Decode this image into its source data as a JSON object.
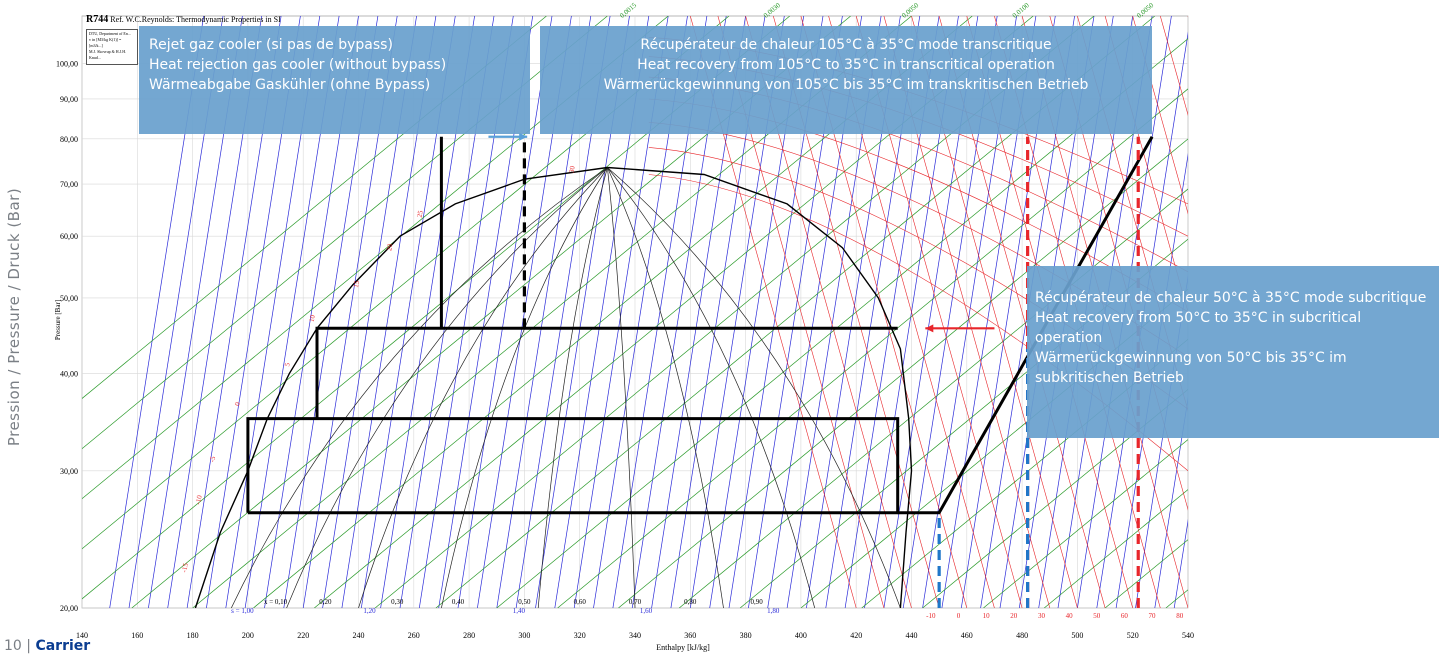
{
  "chart_data": {
    "type": "scatter",
    "title": "R744",
    "subtitle": "Ref. W.C.Reynolds: Thermodynamic Properties in SI",
    "legend_lines": [
      "DTU, Department of En...",
      "v in [M3/kg K(1)] = [m3/k...]",
      "M.J. Skovrup & H.J.H. Knud..."
    ],
    "xlabel": "Enthalpy [kJ/kg]",
    "ylabel": "Pressure [Bar]",
    "side_label": "Pression / Pressure / Druck (Bar)",
    "xlim": [
      140,
      540
    ],
    "ylim": [
      20,
      115
    ],
    "y_scale": "log",
    "x_ticks": [
      140,
      160,
      180,
      200,
      220,
      240,
      260,
      280,
      300,
      320,
      340,
      360,
      380,
      400,
      420,
      440,
      460,
      480,
      500,
      520,
      540
    ],
    "y_ticks": [
      {
        "v": 20,
        "label": "20,00"
      },
      {
        "v": 30,
        "label": "30,00"
      },
      {
        "v": 40,
        "label": "40,00"
      },
      {
        "v": 50,
        "label": "50,00"
      },
      {
        "v": 60,
        "label": "60,00"
      },
      {
        "v": 70,
        "label": "70,00"
      },
      {
        "v": 80,
        "label": "80,00"
      },
      {
        "v": 90,
        "label": "90,00"
      },
      {
        "v": 100,
        "label": "100,00"
      }
    ],
    "quality_labels": [
      "x = 0,10",
      "0,20",
      "0,30",
      "0,40",
      "0,50",
      "0,60",
      "0,70",
      "0,80",
      "0,90"
    ],
    "entropy_labels": [
      "s = 1,00",
      "1,20",
      "1,40",
      "1,60",
      "1,80"
    ],
    "volume_labels": [
      "0,0015",
      "0,0030",
      "0,0050",
      "0,0100",
      "0,0050"
    ],
    "temperature_labels": [
      "-10",
      "0",
      "10",
      "20",
      "30",
      "40",
      "50",
      "60",
      "70",
      "80"
    ],
    "isotherm_labels": [
      "-15",
      "-10",
      "-5",
      "0",
      "5",
      "10",
      "15",
      "20",
      "25",
      "30"
    ],
    "saturation_dome": {
      "liquid": [
        [
          181,
          20
        ],
        [
          190,
          25
        ],
        [
          200,
          30
        ],
        [
          207,
          35
        ],
        [
          215,
          40
        ],
        [
          225,
          45.7
        ],
        [
          238,
          52
        ],
        [
          255,
          60
        ],
        [
          275,
          66
        ],
        [
          300,
          71
        ],
        [
          330,
          73.5
        ]
      ],
      "vapor": [
        [
          330,
          73.5
        ],
        [
          365,
          72
        ],
        [
          395,
          66
        ],
        [
          415,
          58
        ],
        [
          428,
          50
        ],
        [
          436,
          43
        ],
        [
          439,
          35
        ],
        [
          440,
          30
        ],
        [
          438,
          25
        ],
        [
          436,
          20
        ]
      ]
    },
    "cycles": [
      {
        "name": "subcritical",
        "points": [
          [
            200,
            26.5
          ],
          [
            200,
            35
          ],
          [
            435,
            35
          ],
          [
            435,
            26.5
          ],
          [
            200,
            26.5
          ]
        ]
      },
      {
        "name": "subcritical-high",
        "points": [
          [
            225,
            35
          ],
          [
            225,
            45.7
          ],
          [
            435,
            45.7
          ]
        ]
      },
      {
        "name": "gas-cooler",
        "points": [
          [
            270,
            45.7
          ],
          [
            270,
            80.5
          ]
        ]
      },
      {
        "name": "compression",
        "points": [
          [
            435,
            26.5
          ],
          [
            450,
            26.5
          ],
          [
            527,
            80.5
          ]
        ]
      }
    ],
    "dashed_markers": [
      {
        "x": 300,
        "ymin": 45.7,
        "ymax": 80.5,
        "color": "#000000"
      },
      {
        "x": 450,
        "ymin": 20,
        "ymax": 26.5,
        "color": "#1f77c9"
      },
      {
        "x": 482,
        "ymin": 20,
        "ymax": 80.5,
        "color": "#e8262b"
      },
      {
        "x": 482,
        "ymin": 20,
        "ymax": 43,
        "color": "#1f77c9"
      },
      {
        "x": 522,
        "ymin": 20,
        "ymax": 80.5,
        "color": "#e8262b"
      }
    ],
    "arrows": [
      {
        "from": [
          287,
          80.5
        ],
        "to": [
          301,
          80.5
        ],
        "color": "#5aa0d8"
      },
      {
        "from": [
          470,
          45.7
        ],
        "to": [
          445,
          45.7
        ],
        "color": "#e8262b"
      }
    ]
  },
  "callouts": {
    "gas_cooler": [
      "Rejet gaz cooler (si pas de bypass)",
      "Heat rejection gas cooler (without bypass)",
      "Wärmeabgabe Gaskühler (ohne Bypass)"
    ],
    "hr_trans": [
      "Récupérateur de chaleur 105°C à 35°C mode transcritique",
      "Heat recovery from 105°C to 35°C in transcritical operation",
      "Wärmerückgewinnung von 105°C bis 35°C im transkritischen Betrieb"
    ],
    "hr_sub": [
      "Récupérateur de chaleur 50°C à 35°C  mode subcritique",
      "Heat recovery from 50°C to 35°C in subcritical operation",
      "Wärmerückgewinnung von 50°C bis 35°C im subkritischen Betrieb"
    ]
  },
  "footer": {
    "page": "10 |",
    "brand": "Carrier"
  },
  "colors": {
    "isentrope": "#2b2bd9",
    "isochore": "#2a9a2a",
    "isotherm": "#e8262b",
    "cycle": "#000000",
    "callout": "#69a0cd"
  }
}
